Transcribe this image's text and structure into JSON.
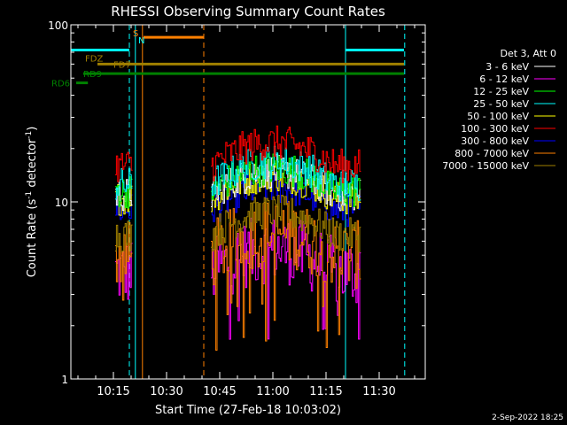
{
  "chart_data": {
    "type": "line",
    "title": "RHESSI Observing Summary Count Rates",
    "xlabel": "Start Time (27-Feb-18 10:03:02)",
    "ylabel_main": "Count Rate (s",
    "ylabel_sup1": "-1",
    "ylabel_mid": " detector",
    "ylabel_sup2": "-1",
    "ylabel_end": ")",
    "y_scale": "log",
    "ylim": [
      1,
      100
    ],
    "y_ticks": [
      {
        "value": 1,
        "label": "1"
      },
      {
        "value": 10,
        "label": "10"
      },
      {
        "value": 100,
        "label": "100"
      }
    ],
    "x_range_minutes": [
      0,
      100
    ],
    "x_ticks": [
      {
        "minutes": 12,
        "label": "10:15"
      },
      {
        "minutes": 27,
        "label": "10:30"
      },
      {
        "minutes": 42,
        "label": "10:45"
      },
      {
        "minutes": 57,
        "label": "11:00"
      },
      {
        "minutes": 72,
        "label": "11:15"
      },
      {
        "minutes": 87,
        "label": "11:30"
      }
    ],
    "legend_header": "Det 3, Att 0",
    "legend_position": "right",
    "series": [
      {
        "name": "3 - 6 keV",
        "color": "#ffffff",
        "level": 11
      },
      {
        "name": "6 - 12 keV",
        "color": "#ff00ff",
        "level": 4
      },
      {
        "name": "12 - 25 keV",
        "color": "#00ff00",
        "level": 11.5
      },
      {
        "name": "25 - 50 keV",
        "color": "#00ffff",
        "level": 12.5
      },
      {
        "name": "50 - 100 keV",
        "color": "#ffff00",
        "level": 10.5
      },
      {
        "name": "100 - 300 keV",
        "color": "#ff0000",
        "level": 16
      },
      {
        "name": "300 - 800 keV",
        "color": "#0000ff",
        "level": 9
      },
      {
        "name": "800 - 7000 keV",
        "color": "#ff8000",
        "level": 5
      },
      {
        "name": "7000 - 15000 keV",
        "color": "#a08000",
        "level": 6.5
      }
    ],
    "data_segments_minutes": [
      [
        12.5,
        17.2
      ],
      [
        39.5,
        81.5
      ]
    ],
    "annotations": [
      {
        "text": "S",
        "color": "#ff8000"
      },
      {
        "text": "N",
        "color": "#00ffff"
      },
      {
        "text": "FDZ",
        "color": "#a08000"
      },
      {
        "text": "FD7",
        "color": "#a08000"
      },
      {
        "text": "RD9",
        "color": "#008000"
      },
      {
        "text": "RD6",
        "color": "#008000"
      }
    ],
    "status_bars": [
      {
        "color": "#00ffff",
        "y": 72,
        "from": 0,
        "to": 16.5
      },
      {
        "color": "#00ffff",
        "y": 72,
        "from": 77.5,
        "to": 94
      },
      {
        "color": "#ff8000",
        "y": 85,
        "from": 20.5,
        "to": 37.5
      },
      {
        "color": "#a08000",
        "y": 60,
        "from": 7.5,
        "to": 94
      },
      {
        "color": "#008000",
        "y": 53,
        "from": 3.5,
        "to": 94
      },
      {
        "color": "#008000",
        "y": 47,
        "from": 1.5,
        "to": 4.8
      }
    ],
    "vertical_markers": [
      {
        "minutes": 16.5,
        "color": "#00ffff",
        "dashed": true
      },
      {
        "minutes": 18.2,
        "color": "#00ffff",
        "dashed": false
      },
      {
        "minutes": 20.2,
        "color": "#ff8000",
        "dashed": false
      },
      {
        "minutes": 37.5,
        "color": "#ff8000",
        "dashed": true
      },
      {
        "minutes": 77.5,
        "color": "#00ffff",
        "dashed": false
      },
      {
        "minutes": 94.2,
        "color": "#00ffff",
        "dashed": true
      }
    ],
    "grid": false
  },
  "footer_date": "2-Sep-2022 18:25"
}
